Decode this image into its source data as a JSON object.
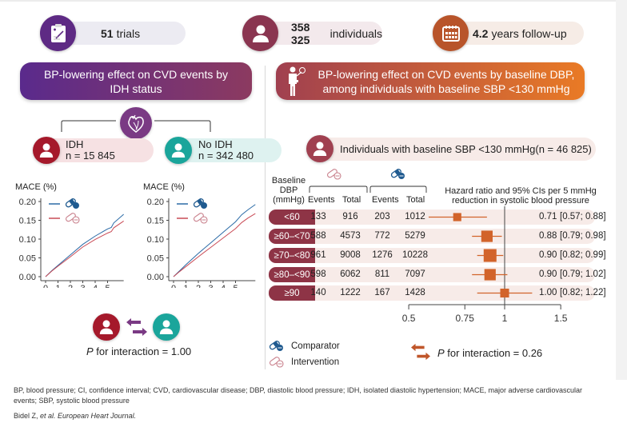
{
  "stats": [
    {
      "bold": "51",
      "rest": "trials",
      "icon": "clipboard-icon",
      "color": "#5e2a84"
    },
    {
      "bold": "358 325",
      "rest": "individuals",
      "icon": "person-icon",
      "color": "#8a3550"
    },
    {
      "bold": "4.2",
      "rest": "years follow-up",
      "icon": "calendar-icon",
      "color": "#b8542a"
    }
  ],
  "left_panel": {
    "banner": [
      "BP-lowering effect on CVD events by",
      "IDH status"
    ],
    "groups": [
      {
        "name": "IDH",
        "n": "n = 15 845",
        "color": "#a5192b",
        "bg": "#f6e1e3"
      },
      {
        "name": "No IDH",
        "n": "n = 342 480",
        "color": "#1aa59b",
        "bg": "#def2f0"
      }
    ],
    "p_interaction": {
      "italic": "P",
      "text": " for interaction = 1.00"
    }
  },
  "right_panel": {
    "banner": [
      "BP-lowering effect on CVD events by baseline DBP,",
      "among individuals with baseline SBP <130 mmHg"
    ],
    "subgroup_pill": {
      "bold": "Individuals with baseline SBP <130 mmHg",
      "rest": " (n = 46 825)"
    },
    "table_headers": {
      "baseline": [
        "Baseline",
        "DBP",
        "(mmHg)"
      ],
      "events": "Events",
      "total": "Total",
      "hr_title": [
        "Hazard ratio and 95% CIs per 5 mmHg",
        "reduction in systolic blood pressure"
      ]
    },
    "legend": [
      {
        "label": "Comparator",
        "icon": "pill-filled-icon"
      },
      {
        "label": "Intervention",
        "icon": "pill-outline-icon"
      }
    ],
    "p_interaction": {
      "italic": "P",
      "text": " for interaction = 0.26"
    }
  },
  "footer": {
    "abbrev_line1": "BP, blood pressure; CI, confidence interval; CVD, cardiovascular disease; DBP, diastolic blood pressure; IDH, isolated diastolic hypertension; MACE, major adverse cardiovascular",
    "abbrev_line2": "events; SBP, systolic blood pressure",
    "citation_author": "Bidel Z, ",
    "citation_etal": "et al. European Heart Journal."
  },
  "colors": {
    "comparator": "#2a6aa6",
    "intervention": "#c94a55",
    "forest": "#d2632a",
    "row_label": "#8e3446"
  },
  "chart_data": [
    {
      "type": "line",
      "title": "IDH",
      "ylabel": "MACE (%)",
      "xlabel": "Follow-up (years)",
      "xticks": [
        0,
        1,
        2,
        3,
        4,
        5
      ],
      "yticks": [
        0.0,
        0.05,
        0.1,
        0.15,
        0.2
      ],
      "ytick_labels": [
        "0.00",
        "0.05",
        "0.10",
        "0.15",
        "0.20"
      ],
      "xlim": [
        0,
        6.3
      ],
      "ylim": [
        0,
        0.2
      ],
      "series": [
        {
          "name": "Comparator",
          "x": [
            0,
            0.5,
            1,
            2,
            3,
            4,
            5,
            5.3,
            5.5,
            6.3
          ],
          "y": [
            0,
            0.016,
            0.03,
            0.058,
            0.086,
            0.108,
            0.127,
            0.131,
            0.143,
            0.166
          ]
        },
        {
          "name": "Intervention",
          "x": [
            0,
            0.5,
            1,
            2,
            3,
            4,
            5,
            5.3,
            5.5,
            6.3
          ],
          "y": [
            0,
            0.015,
            0.028,
            0.053,
            0.079,
            0.099,
            0.116,
            0.12,
            0.13,
            0.148
          ]
        }
      ]
    },
    {
      "type": "line",
      "title": "No IDH",
      "ylabel": "MACE (%)",
      "xlabel": "Follow-up (years)",
      "xticks": [
        0,
        1,
        2,
        3,
        4,
        5
      ],
      "yticks": [
        0.0,
        0.05,
        0.1,
        0.15,
        0.2
      ],
      "ytick_labels": [
        "0.00",
        "0.05",
        "0.10",
        "0.15",
        "0.20"
      ],
      "xlim": [
        0,
        6.6
      ],
      "ylim": [
        0,
        0.2
      ],
      "series": [
        {
          "name": "Comparator",
          "x": [
            0,
            0.5,
            1,
            2,
            3,
            4,
            5,
            5.5,
            6,
            6.6
          ],
          "y": [
            0,
            0.016,
            0.032,
            0.062,
            0.09,
            0.118,
            0.146,
            0.165,
            0.178,
            0.192
          ]
        },
        {
          "name": "Intervention",
          "x": [
            0,
            0.5,
            1,
            2,
            3,
            4,
            5,
            5.5,
            6,
            6.6
          ],
          "y": [
            0,
            0.014,
            0.027,
            0.053,
            0.078,
            0.103,
            0.128,
            0.144,
            0.156,
            0.168
          ]
        }
      ]
    },
    {
      "type": "table",
      "subtype": "forest",
      "title": "Hazard ratio and 95% CIs per 5 mmHg reduction in systolic blood pressure",
      "columns": [
        "Baseline DBP (mmHg)",
        "Intervention Events",
        "Intervention Total",
        "Comparator Events",
        "Comparator Total",
        "HR [95% CI]"
      ],
      "xscale": "log",
      "xticks": [
        0.5,
        0.75,
        1,
        1.5
      ],
      "xtick_labels": [
        "0.5",
        "0.75",
        "1",
        "1.5"
      ],
      "xlim": [
        0.5,
        1.5
      ],
      "reference": 1,
      "rows": [
        {
          "dbp": "<60",
          "int_events": "133",
          "int_total": "916",
          "comp_events": "203",
          "comp_total": "1012",
          "hr": 0.71,
          "lo": 0.57,
          "hi": 0.88,
          "label": "0.71",
          "ci": "[0.57; 0.88]",
          "weight": 0.35
        },
        {
          "dbp": "≥60–<70",
          "int_events": "588",
          "int_total": "4573",
          "comp_events": "772",
          "comp_total": "5279",
          "hr": 0.88,
          "lo": 0.79,
          "hi": 0.98,
          "label": "0.88",
          "ci": "[0.79; 0.98]",
          "weight": 0.8
        },
        {
          "dbp": "≥70–<80",
          "int_events": "961",
          "int_total": "9008",
          "comp_events": "1276",
          "comp_total": "10228",
          "hr": 0.9,
          "lo": 0.82,
          "hi": 0.99,
          "label": "0.90",
          "ci": "[0.82; 0.99]",
          "weight": 1.0
        },
        {
          "dbp": "≥80–<90",
          "int_events": "598",
          "int_total": "6062",
          "comp_events": "811",
          "comp_total": "7097",
          "hr": 0.9,
          "lo": 0.79,
          "hi": 1.02,
          "label": "0.90",
          "ci": "[0.79; 1.02]",
          "weight": 0.8
        },
        {
          "dbp": "≥90",
          "int_events": "140",
          "int_total": "1222",
          "comp_events": "167",
          "comp_total": "1428",
          "hr": 1.0,
          "lo": 0.82,
          "hi": 1.22,
          "label": "1.00",
          "ci": "[0.82; 1.22]",
          "weight": 0.45
        }
      ]
    }
  ]
}
